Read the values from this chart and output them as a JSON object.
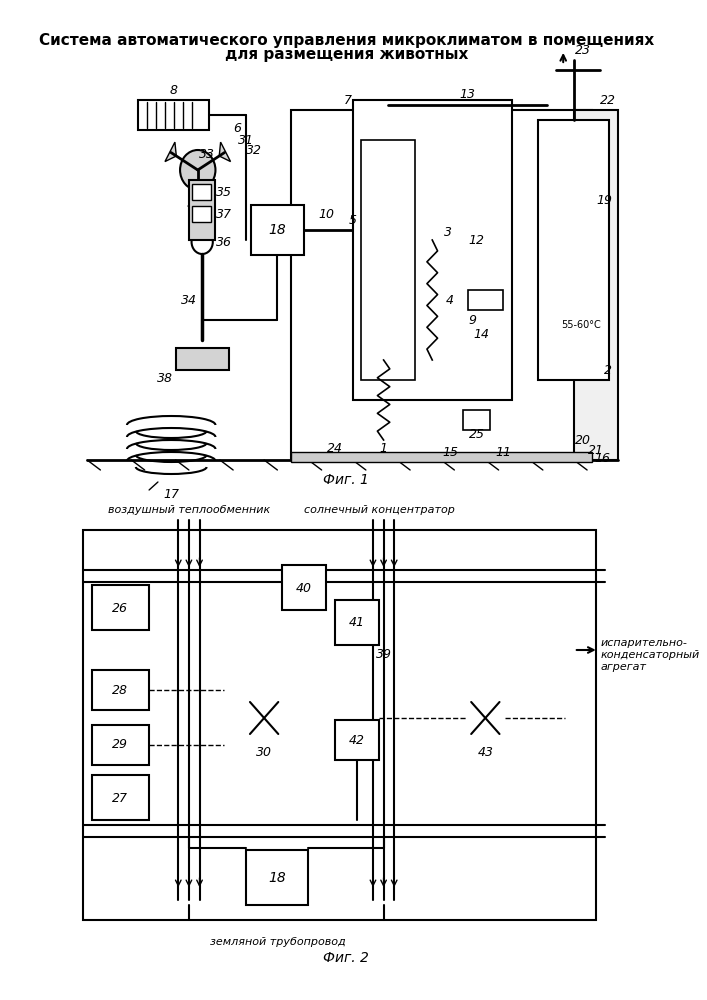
{
  "title_line1": "Система автоматического управления микроклиматом в помещениях",
  "title_line2": "для размещения животных",
  "fig1_caption": "Фиг. 1",
  "fig2_caption": "Фиг. 2",
  "background": "#ffffff",
  "line_color": "#000000",
  "fig2_label_air": "воздушный теплообменник",
  "fig2_label_solar": "солнечный концентратор",
  "fig2_label_evap": "испарительно-\nконденсаторный\nагрегат",
  "fig2_label_ground": "земляной трубопровод"
}
